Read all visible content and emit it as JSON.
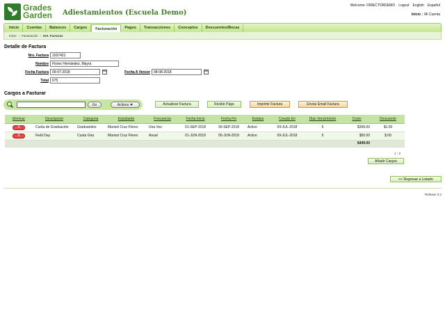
{
  "header": {
    "logo_line1": "Grades",
    "logo_line2": "Garden",
    "app_title": "Adiestamientos (Escuela Demo)",
    "welcome": "Welcome: DIRECTORDEMO",
    "logout": "Logout",
    "english": "English",
    "espanol": "Español",
    "inicio": "Inicio",
    "mi_cuenta": "Mi Cuenta"
  },
  "nav": {
    "tabs": [
      {
        "label": "Inicio"
      },
      {
        "label": "Cuentas"
      },
      {
        "label": "Balances"
      },
      {
        "label": "Cargos"
      },
      {
        "label": "Facturación",
        "active": true
      },
      {
        "label": "Pagos"
      },
      {
        "label": "Transacciones"
      },
      {
        "label": "Conceptos"
      },
      {
        "label": "Descuentos/Becas"
      }
    ]
  },
  "breadcrumb": {
    "items": [
      "Inicio",
      "Facturación",
      "Det. Facturas"
    ]
  },
  "detail": {
    "title": "Detalle de Factura",
    "nro_label": "Nro. Factura",
    "nro_value": "1037421",
    "nombre_label": "Nombre",
    "nombre_value": "Flores Hernández, Mayra",
    "fecha_label": "Fecha Factura",
    "fecha_value": "09-07-2018",
    "vence_label": "Fecha A Vencer",
    "vence_value": "08-08-2018",
    "total_label": "Total",
    "total_value": "675"
  },
  "cargos": {
    "title": "Cargos a Facturar",
    "go_label": "Go",
    "actions_label": "Actions",
    "buttons": {
      "actualizar": "Actualizar Factura",
      "recibir": "Recibir Pago",
      "imprimir": "Imprimir Factura",
      "enviar": "Enviar Email Factura"
    }
  },
  "table": {
    "headers": [
      "Eliminar",
      "Descripcion",
      "Categoria",
      "Estudiante",
      "Frecuencia",
      "Fecha Inicio",
      "Fecha Fin",
      "Estatus",
      "Creado En",
      "Dias Vencimiento",
      "Costo",
      "Descuento"
    ],
    "delete_label": "X",
    "rows": [
      [
        "Cuota de Graduación",
        "Graduandos",
        "Marisol Cruz Flores",
        "Una Vez",
        "01-SEP-2018",
        "30-SEP-2018",
        "Activo",
        "09-JUL-2018",
        "5",
        "$399.00",
        "$1.00"
      ],
      [
        "Field Day",
        "Cuota Gira",
        "Marisol Cruz Flores",
        "Anual",
        "01-JUN-2018",
        "05-JUN-2018",
        "Activo",
        "09-JUL-2018",
        "5",
        "$50.00",
        "$.00"
      ]
    ],
    "total": "$449.00"
  },
  "pager": "1 - 2",
  "add_button": "Añadir Cargos",
  "back_button": "<< Regresar a Listado",
  "release": "Release 3.2"
}
